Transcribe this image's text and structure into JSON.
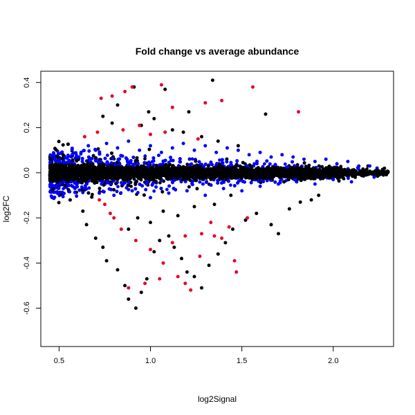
{
  "chart_data": {
    "type": "scatter",
    "title": "Fold change vs average abundance",
    "xlabel": "log2Signal",
    "ylabel": "log2FC",
    "xlim": [
      0.4,
      2.33
    ],
    "ylim": [
      -0.77,
      0.45
    ],
    "x_ticks": [
      0.5,
      1.0,
      1.5,
      2.0
    ],
    "x_tick_labels": [
      "0.5",
      "1.0",
      "1.5",
      "2.0"
    ],
    "y_ticks": [
      0.4,
      0.2,
      0.0,
      -0.2,
      -0.4,
      -0.6
    ],
    "y_tick_labels": [
      "0.4",
      "0.2",
      "0.0",
      "-0.2",
      "-0.4",
      "-0.6"
    ],
    "grid": false,
    "colors": {
      "black": "#000000",
      "blue": "#0000ff",
      "red": "#e8002a"
    },
    "series": [
      {
        "color": "black",
        "x": [
          1.34,
          0.91,
          1.08,
          0.74,
          0.79,
          0.82,
          0.99,
          1.21,
          1.63,
          0.63,
          0.65,
          0.7,
          0.74,
          0.76,
          0.82,
          0.86,
          0.88,
          0.92,
          0.95,
          0.98,
          1.02,
          1.05,
          1.1,
          1.13,
          1.17,
          1.2,
          1.24,
          1.28,
          1.32,
          1.37,
          1.41,
          1.45,
          1.52,
          1.58,
          1.66,
          1.7,
          1.76,
          1.82,
          1.88,
          1.92,
          0.95,
          1.02,
          1.12,
          1.18,
          1.28,
          1.37,
          1.48,
          0.88,
          0.93,
          1.0,
          1.07,
          1.15,
          1.24,
          1.35,
          1.44,
          2.28,
          2.24,
          2.19,
          2.15,
          2.12
        ],
        "y": [
          0.41,
          0.38,
          0.37,
          0.25,
          0.22,
          0.3,
          0.27,
          0.27,
          0.26,
          -0.17,
          -0.23,
          -0.29,
          -0.33,
          -0.39,
          -0.43,
          -0.5,
          -0.56,
          -0.6,
          -0.53,
          -0.47,
          -0.35,
          -0.3,
          -0.28,
          -0.33,
          -0.38,
          -0.44,
          -0.46,
          -0.51,
          -0.41,
          -0.36,
          -0.31,
          -0.25,
          -0.21,
          -0.18,
          -0.23,
          -0.27,
          -0.16,
          -0.13,
          -0.12,
          -0.1,
          0.21,
          0.24,
          0.19,
          0.18,
          0.16,
          0.14,
          0.12,
          -0.25,
          -0.2,
          -0.22,
          -0.17,
          -0.19,
          -0.15,
          -0.14,
          -0.1,
          0.02,
          0.01,
          0.03,
          0.0,
          -0.02
        ]
      },
      {
        "color": "red",
        "x": [
          0.73,
          0.79,
          0.86,
          0.9,
          1.06,
          1.3,
          1.39,
          1.56,
          1.81,
          1.12,
          0.72,
          0.78,
          0.84,
          0.92,
          1.0,
          1.07,
          1.15,
          1.19,
          1.22,
          1.27,
          1.35,
          1.43,
          1.47,
          1.53,
          0.75,
          0.8,
          0.88,
          0.97,
          1.05,
          1.12,
          1.19,
          1.28,
          1.33,
          1.39,
          0.64,
          0.71,
          0.85,
          0.94,
          1.0,
          1.08,
          1.26,
          1.46
        ],
        "y": [
          0.33,
          0.34,
          0.36,
          0.38,
          0.39,
          0.31,
          0.32,
          0.38,
          0.27,
          0.29,
          -0.12,
          -0.18,
          -0.25,
          -0.3,
          -0.34,
          -0.4,
          -0.46,
          -0.49,
          -0.52,
          -0.37,
          -0.28,
          -0.24,
          -0.44,
          -0.2,
          -0.14,
          -0.2,
          -0.51,
          -0.49,
          -0.47,
          -0.31,
          -0.28,
          -0.27,
          -0.22,
          -0.29,
          0.16,
          0.18,
          0.19,
          0.21,
          0.17,
          0.18,
          0.15,
          -0.39
        ]
      },
      {
        "color": "blue",
        "x": [
          0.62,
          0.66,
          0.7,
          0.76,
          0.82,
          0.88,
          0.94,
          1.0,
          1.06,
          1.12,
          1.18,
          1.24,
          1.3,
          1.36,
          1.42,
          1.48,
          1.54,
          1.6,
          1.66,
          1.72,
          1.78,
          1.84,
          1.9,
          1.96,
          2.02,
          2.08,
          2.14,
          2.2,
          0.64,
          0.72,
          0.8,
          0.9,
          1.0,
          1.1,
          1.2,
          1.3,
          1.4,
          1.5,
          1.6,
          1.7,
          1.8,
          1.9,
          2.0,
          2.1
        ],
        "y": [
          0.09,
          0.12,
          0.1,
          0.13,
          0.11,
          0.14,
          0.1,
          0.12,
          0.09,
          0.11,
          0.13,
          0.1,
          0.12,
          0.09,
          0.11,
          0.1,
          0.08,
          0.09,
          0.07,
          0.08,
          0.07,
          0.06,
          0.05,
          0.06,
          0.04,
          0.05,
          0.03,
          0.03,
          -0.07,
          -0.09,
          -0.1,
          -0.08,
          -0.11,
          -0.09,
          -0.08,
          -0.1,
          -0.07,
          -0.08,
          -0.06,
          -0.05,
          -0.04,
          -0.05,
          -0.03,
          -0.04
        ]
      }
    ]
  }
}
